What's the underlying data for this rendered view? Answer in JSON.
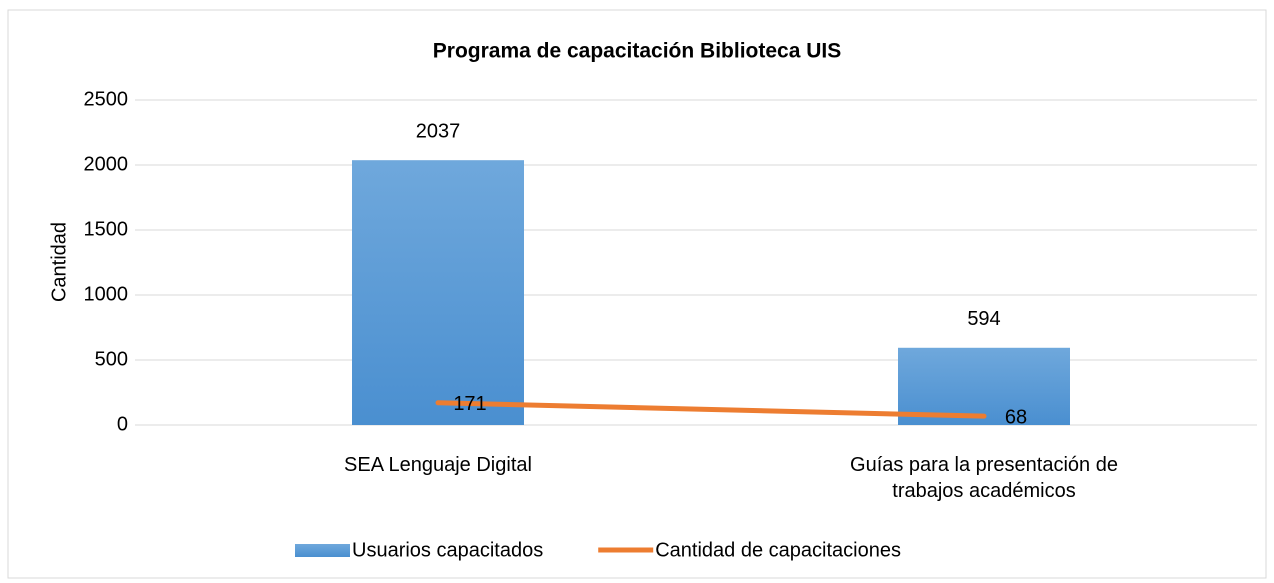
{
  "chart_data": {
    "type": "bar",
    "title": "Programa de capacitación Biblioteca UIS",
    "ylabel": "Cantidad",
    "categories": [
      "SEA Lenguaje Digital",
      "Guías para la presentación de trabajos académicos"
    ],
    "series": [
      {
        "name": "Usuarios capacitados",
        "type": "bar",
        "color": "#5b9bd5",
        "values": [
          2037,
          594
        ]
      },
      {
        "name": "Cantidad de capacitaciones",
        "type": "line",
        "color": "#ed7d31",
        "values": [
          171,
          68
        ]
      }
    ],
    "ylim": [
      0,
      2500
    ],
    "yticks": [
      0,
      500,
      1000,
      1500,
      2000,
      2500
    ],
    "grid": true,
    "legend": "bottom"
  }
}
